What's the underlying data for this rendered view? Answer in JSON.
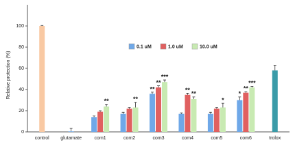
{
  "chart_data": {
    "type": "bar",
    "y_label": "Relative protection (%)",
    "categories": [
      "control",
      "glutamate",
      "com1",
      "com2",
      "com3",
      "com4",
      "com5",
      "com6",
      "trolox"
    ],
    "reference_values": [
      100,
      0.5,
      null,
      null,
      null,
      null,
      null,
      null,
      58
    ],
    "reference_errors": [
      0.5,
      3,
      null,
      null,
      null,
      null,
      null,
      null,
      5
    ],
    "reference_colors": [
      "#f9c9a3",
      "#6fa8e8",
      null,
      null,
      null,
      null,
      null,
      null,
      "#3a9ba8"
    ],
    "series": [
      {
        "name": "0.1 uM",
        "color": "#6fa8e8",
        "values": [
          null,
          null,
          14,
          17,
          36,
          17,
          17,
          30,
          null
        ],
        "errors": [
          null,
          null,
          1,
          1.5,
          1.5,
          1,
          1.5,
          3,
          null
        ],
        "annotations": [
          null,
          null,
          null,
          null,
          "**",
          null,
          null,
          "*",
          null
        ]
      },
      {
        "name": "1.0 uM",
        "color": "#e06060",
        "values": [
          null,
          null,
          19,
          22,
          42,
          35,
          22,
          37,
          null
        ],
        "errors": [
          null,
          null,
          1,
          1,
          1.5,
          1.5,
          1,
          1,
          null
        ],
        "annotations": [
          null,
          null,
          null,
          null,
          "**",
          "**",
          null,
          "**",
          null
        ]
      },
      {
        "name": "10.0 uM",
        "color": "#c8eab2",
        "values": [
          null,
          null,
          24,
          23,
          47,
          31,
          23,
          42,
          null
        ],
        "errors": [
          null,
          null,
          2,
          5,
          2,
          2,
          4,
          1,
          null
        ],
        "annotations": [
          null,
          null,
          "**",
          "**",
          "***",
          "**",
          "*",
          "***",
          null
        ]
      }
    ],
    "ylim": [
      0,
      120
    ],
    "yticks": [
      0,
      20,
      40,
      60,
      80,
      100
    ]
  }
}
